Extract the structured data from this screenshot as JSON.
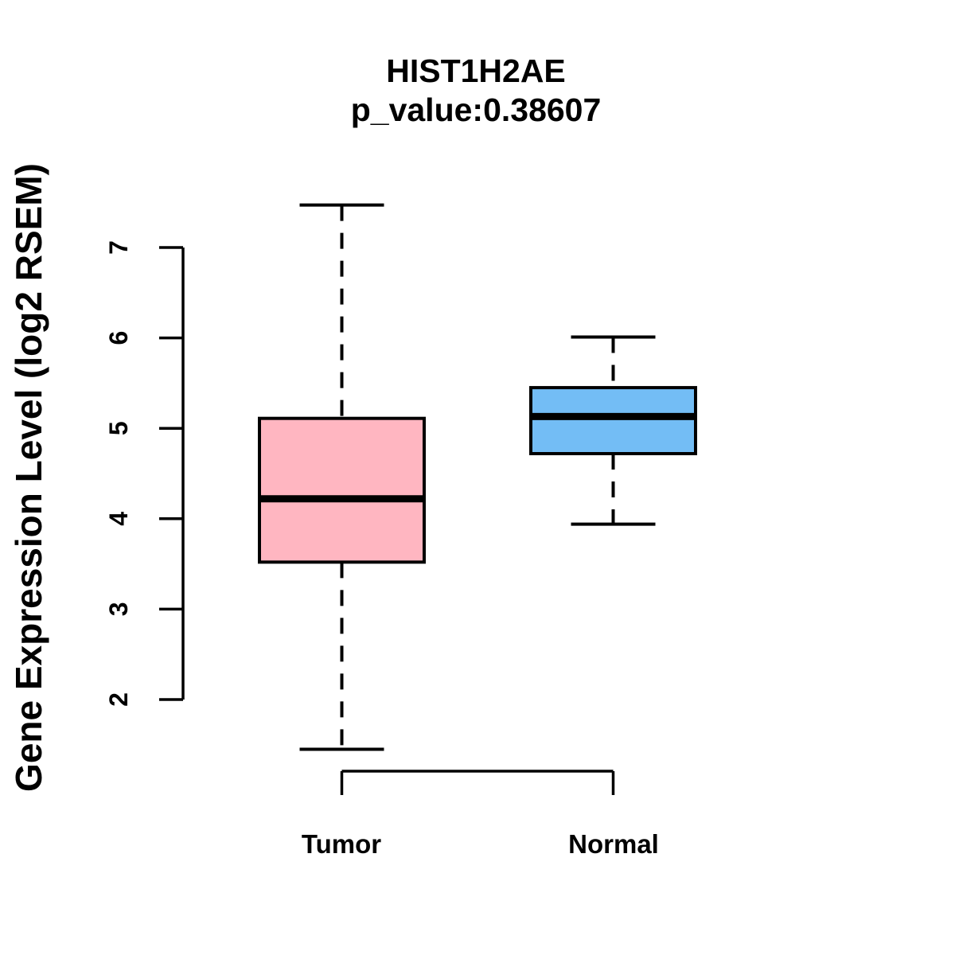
{
  "title": "HIST1H2AE",
  "subtitle": "p_value:0.38607",
  "chart_data": {
    "type": "boxplot",
    "title": "HIST1H2AE",
    "subtitle": "p_value:0.38607",
    "ylabel": "Gene Expression Level (log2 RSEM)",
    "xlabel": "",
    "categories": [
      "Tumor",
      "Normal"
    ],
    "y_ticks": [
      2,
      3,
      4,
      5,
      6,
      7
    ],
    "ylim": [
      1.2,
      7.8
    ],
    "grid": false,
    "legend": "none",
    "series": [
      {
        "name": "Tumor",
        "box_fill": "#FFB6C1",
        "whisker_low": 1.45,
        "q1": 3.52,
        "median": 4.22,
        "q3": 5.11,
        "whisker_high": 7.47,
        "outliers": []
      },
      {
        "name": "Normal",
        "box_fill": "#73BDF5",
        "whisker_low": 3.94,
        "q1": 4.72,
        "median": 5.13,
        "q3": 5.45,
        "whisker_high": 6.01,
        "outliers": []
      }
    ],
    "colors": {
      "tumor_fill": "#FFB6C1",
      "normal_fill": "#73BDF5",
      "stroke": "#000000",
      "background": "#ffffff"
    }
  }
}
